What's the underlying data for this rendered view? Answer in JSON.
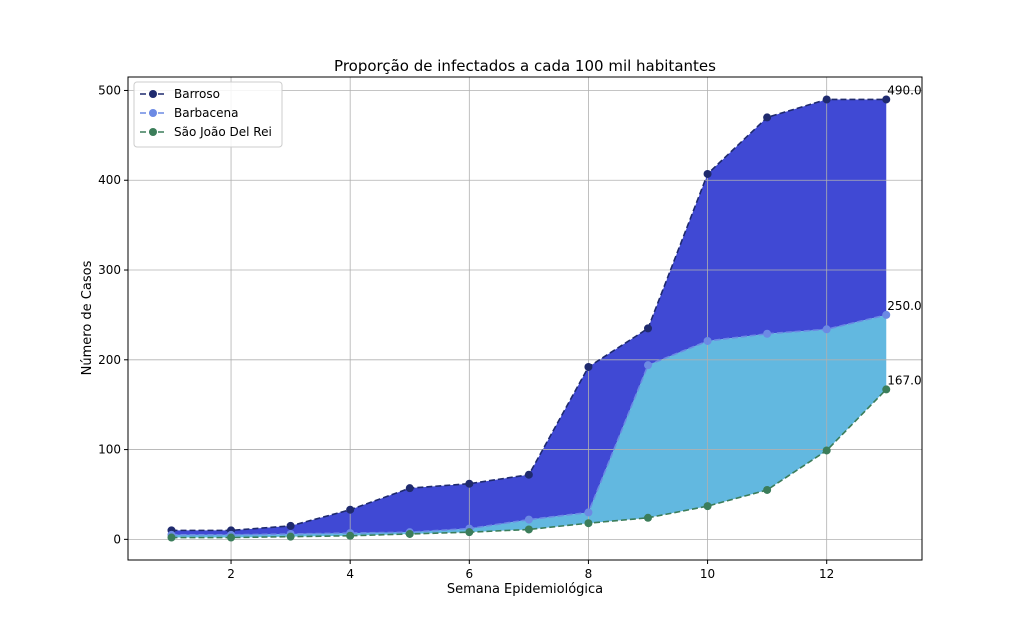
{
  "chart_data": {
    "type": "line",
    "title": "Proporção de infectados a cada 100 mil habitantes",
    "xlabel": "Semana Epidemiológica",
    "ylabel": "Número de Casos",
    "x": [
      1,
      2,
      3,
      4,
      5,
      6,
      7,
      8,
      9,
      10,
      11,
      12,
      13
    ],
    "xlim": [
      0.27,
      13.6
    ],
    "ylim": [
      -23,
      515
    ],
    "xticks": [
      2,
      4,
      6,
      8,
      10,
      12
    ],
    "yticks": [
      0,
      100,
      200,
      300,
      400,
      500
    ],
    "grid": true,
    "legend_position": "top-left",
    "series": [
      {
        "name": "Barroso",
        "values": [
          10,
          10,
          15,
          33,
          57,
          62,
          72,
          192,
          235,
          407,
          470,
          490,
          490
        ],
        "color": "#1f2a6e",
        "fill_to_next_color": "#4049d4",
        "end_label": "490.0"
      },
      {
        "name": "Barbacena",
        "values": [
          5,
          5,
          6,
          7,
          8,
          12,
          22,
          30,
          194,
          221,
          229,
          234,
          250
        ],
        "color": "#6c8ae4",
        "fill_to_next_color": "#62b8e0",
        "end_label": "250.0"
      },
      {
        "name": "São João Del Rei",
        "values": [
          2,
          2,
          3,
          4,
          6,
          8,
          11,
          18,
          24,
          37,
          55,
          99,
          167
        ],
        "color": "#3b7d5a",
        "end_label": "167.0"
      }
    ]
  }
}
